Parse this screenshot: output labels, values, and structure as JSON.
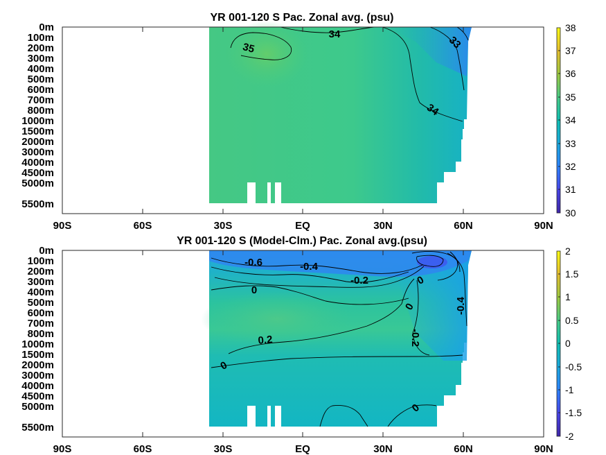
{
  "chart_data": [
    {
      "type": "heatmap",
      "title": "YR 001-120 S Pac. Zonal avg. (psu)",
      "x_tick_labels": [
        "90S",
        "60S",
        "30S",
        "EQ",
        "30N",
        "60N",
        "90N"
      ],
      "x_range_deg": [
        -90,
        90
      ],
      "data_x_range_deg": [
        -35,
        61
      ],
      "y_tick_labels": [
        "0m",
        "100m",
        "200m",
        "300m",
        "400m",
        "500m",
        "600m",
        "700m",
        "800m",
        "1000m",
        "1500m",
        "2000m",
        "3000m",
        "4000m",
        "4500m",
        "5000m",
        "5500m"
      ],
      "colorbar": {
        "min": 30,
        "max": 38,
        "ticks": [
          "30",
          "31",
          "32",
          "33",
          "34",
          "35",
          "36",
          "37",
          "38"
        ]
      },
      "contour_labels": [
        {
          "text": "35",
          "lat": -19,
          "depth_index": 1.9
        },
        {
          "text": "34",
          "lat": 12,
          "depth_index": 0.7
        },
        {
          "text": "33",
          "lat": 55,
          "depth_index": 1.3
        },
        {
          "text": "34",
          "lat": 48,
          "depth_index": 8.0
        }
      ],
      "grid": false,
      "colormap": "parula"
    },
    {
      "type": "heatmap",
      "title": "YR 001-120 S (Model-Clm.) Pac. Zonal avg.(psu)",
      "x_tick_labels": [
        "90S",
        "60S",
        "30S",
        "EQ",
        "30N",
        "60N",
        "90N"
      ],
      "x_range_deg": [
        -90,
        90
      ],
      "data_x_range_deg": [
        -35,
        61
      ],
      "y_tick_labels": [
        "0m",
        "100m",
        "200m",
        "300m",
        "400m",
        "500m",
        "600m",
        "700m",
        "800m",
        "1000m",
        "1500m",
        "2000m",
        "3000m",
        "4000m",
        "4500m",
        "5000m",
        "5500m"
      ],
      "colorbar": {
        "min": -2,
        "max": 2,
        "ticks": [
          "2",
          "1.5",
          "1",
          "0.5",
          "0",
          "-0.5",
          "-1",
          "-1.5",
          "-2"
        ]
      },
      "contour_labels": [
        {
          "text": "-0.6",
          "lat": -21,
          "depth_index": 1.2
        },
        {
          "text": "-0.4",
          "lat": 3,
          "depth_index": 1.6
        },
        {
          "text": "-0.2",
          "lat": 27,
          "depth_index": 2.9
        },
        {
          "text": "0",
          "lat": -22,
          "depth_index": 3.8
        },
        {
          "text": "0",
          "lat": 44,
          "depth_index": 2.8
        },
        {
          "text": "0",
          "lat": 41,
          "depth_index": 5.3
        },
        {
          "text": "0.2",
          "lat": -16,
          "depth_index": 8.5
        },
        {
          "text": "-0.2",
          "lat": 43,
          "depth_index": 8.4
        },
        {
          "text": "-0.4",
          "lat": 58,
          "depth_index": 5.0
        },
        {
          "text": "0",
          "lat": -31,
          "depth_index": 10.9
        },
        {
          "text": "0",
          "lat": 43,
          "depth_index": 14.3
        }
      ],
      "grid": false,
      "colormap": "parula"
    }
  ]
}
